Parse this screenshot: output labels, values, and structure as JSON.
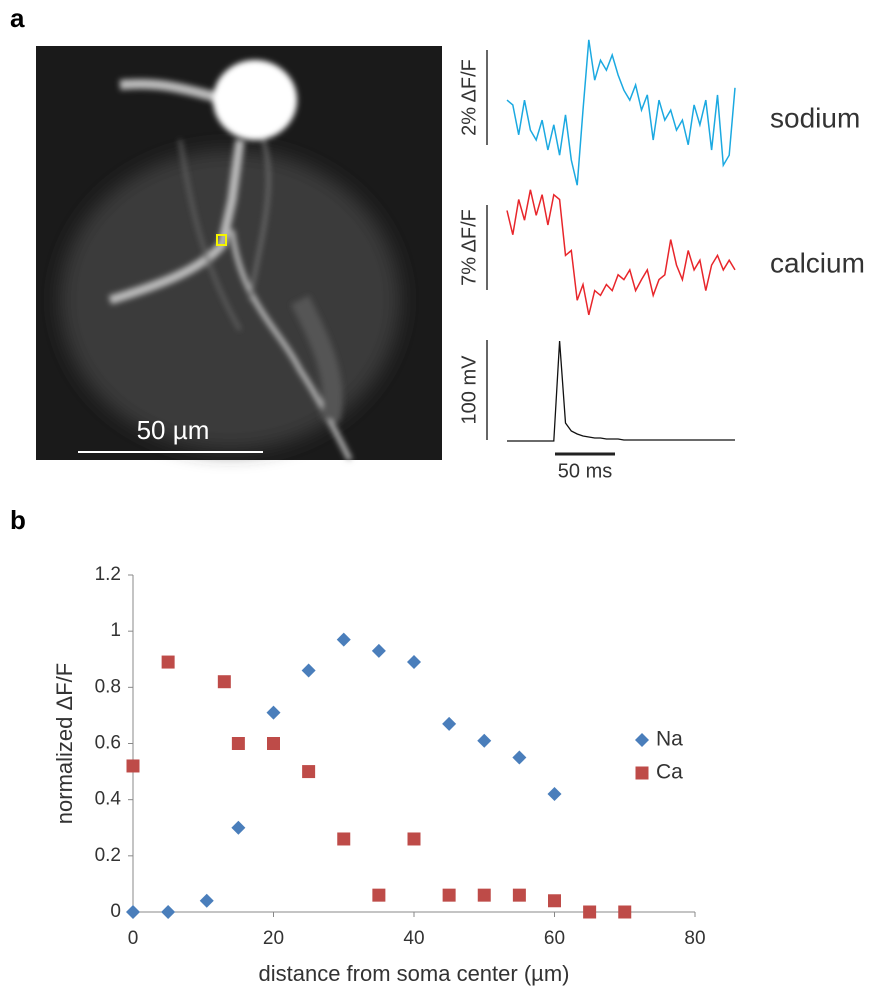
{
  "figure": {
    "panel_labels": [
      "a",
      "b"
    ],
    "image_scale_bar_label": "50 µm"
  },
  "chart_data": [
    {
      "type": "line",
      "series": [
        {
          "name": "sodium",
          "color": "#1ba9e1",
          "scale_bar": {
            "value": 2,
            "label": "2% ΔF/F"
          },
          "values": [
            1.05,
            0.95,
            0.32,
            1.05,
            0.42,
            0.21,
            0.63,
            0,
            0.53,
            -0.11,
            0.74,
            -0.21,
            -0.74,
            0.84,
            2.32,
            1.47,
            1.89,
            1.68,
            2.0,
            1.58,
            1.26,
            1.05,
            1.37,
            0.84,
            1.16,
            0.21,
            1.05,
            0.63,
            0.84,
            0.42,
            0.63,
            0.11,
            0.95,
            0.53,
            1.05,
            0,
            1.16,
            -0.32,
            -0.11,
            1.31
          ]
        },
        {
          "name": "calcium",
          "color": "#e8262b",
          "scale_bar": {
            "value": 7,
            "label": "7% ΔF/F"
          },
          "values": [
            8.2,
            6.2,
            9.1,
            7.4,
            9.9,
            7.8,
            9.5,
            7.0,
            9.5,
            9.1,
            4.5,
            4.9,
            0.8,
            2.1,
            -0.4,
            1.6,
            1.2,
            2.1,
            1.6,
            2.9,
            2.5,
            3.3,
            1.6,
            2.5,
            3.3,
            1.2,
            2.5,
            2.9,
            5.8,
            3.7,
            2.5,
            4.9,
            3.3,
            4.1,
            1.6,
            3.7,
            4.5,
            3.3,
            4.1,
            3.3
          ]
        },
        {
          "color": "#111111",
          "scale_bar": {
            "value": 100,
            "label": "100 mV"
          },
          "values": [
            0,
            0,
            0,
            0,
            0,
            0,
            0,
            0,
            0,
            100,
            18,
            10,
            7,
            5,
            4,
            3,
            3,
            2,
            2,
            2,
            1,
            1,
            1,
            1,
            1,
            1,
            1,
            1,
            1,
            1,
            1,
            1,
            1,
            1,
            1,
            1,
            1,
            1,
            1,
            1
          ]
        }
      ],
      "time_scale_bar": {
        "value": 50,
        "label": "50 ms"
      }
    },
    {
      "type": "scatter",
      "xlabel": "distance from soma center (µm)",
      "ylabel": "normalized ΔF/F",
      "xlim": [
        0,
        80
      ],
      "ylim": [
        0,
        1.2
      ],
      "xticks": [
        0,
        20,
        40,
        60,
        80
      ],
      "yticks": [
        0,
        0.2,
        0.4,
        0.6,
        0.8,
        1,
        1.2
      ],
      "legend": "right",
      "series": [
        {
          "name": "Na",
          "color": "#4a7ebb",
          "marker": "diamond",
          "x": [
            0,
            5,
            10.5,
            15,
            20,
            25,
            30,
            35,
            40,
            45,
            50,
            55,
            60
          ],
          "values": [
            0,
            0,
            0.04,
            0.3,
            0.71,
            0.86,
            0.97,
            0.93,
            0.89,
            0.67,
            0.61,
            0.55,
            0.42
          ]
        },
        {
          "name": "Ca",
          "color": "#be4b48",
          "marker": "square",
          "x": [
            0,
            5,
            13,
            15,
            20,
            25,
            30,
            35,
            40,
            45,
            50,
            55,
            60,
            65,
            70
          ],
          "values": [
            0.52,
            0.89,
            0.82,
            0.6,
            0.6,
            0.5,
            0.26,
            0.06,
            0.26,
            0.06,
            0.06,
            0.06,
            0.04,
            0,
            0
          ]
        }
      ]
    }
  ]
}
